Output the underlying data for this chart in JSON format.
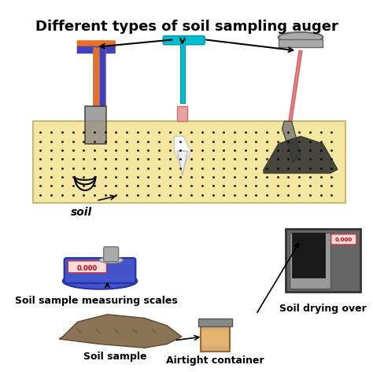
{
  "title": "Different types of soil sampling auger",
  "label_soil": "soil",
  "label_scales": "Soil sample measuring scales",
  "label_sample": "Soil sample",
  "label_airtight": "Airtight container",
  "label_oven": "Soil drying over",
  "display_value": "0.000",
  "bg_color": "#ffffff",
  "soil_layer_color": "#f5e6a0",
  "soil_layer_border": "#c8b87a",
  "auger1_handle_color1": "#e87020",
  "auger1_handle_color2": "#4040c0",
  "auger2_handle_color": "#00bcd4",
  "auger3_handle_color": "#f08080",
  "scale_body_color": "#4455cc",
  "oven_body_color": "#555555",
  "container_color": "#d4a060"
}
